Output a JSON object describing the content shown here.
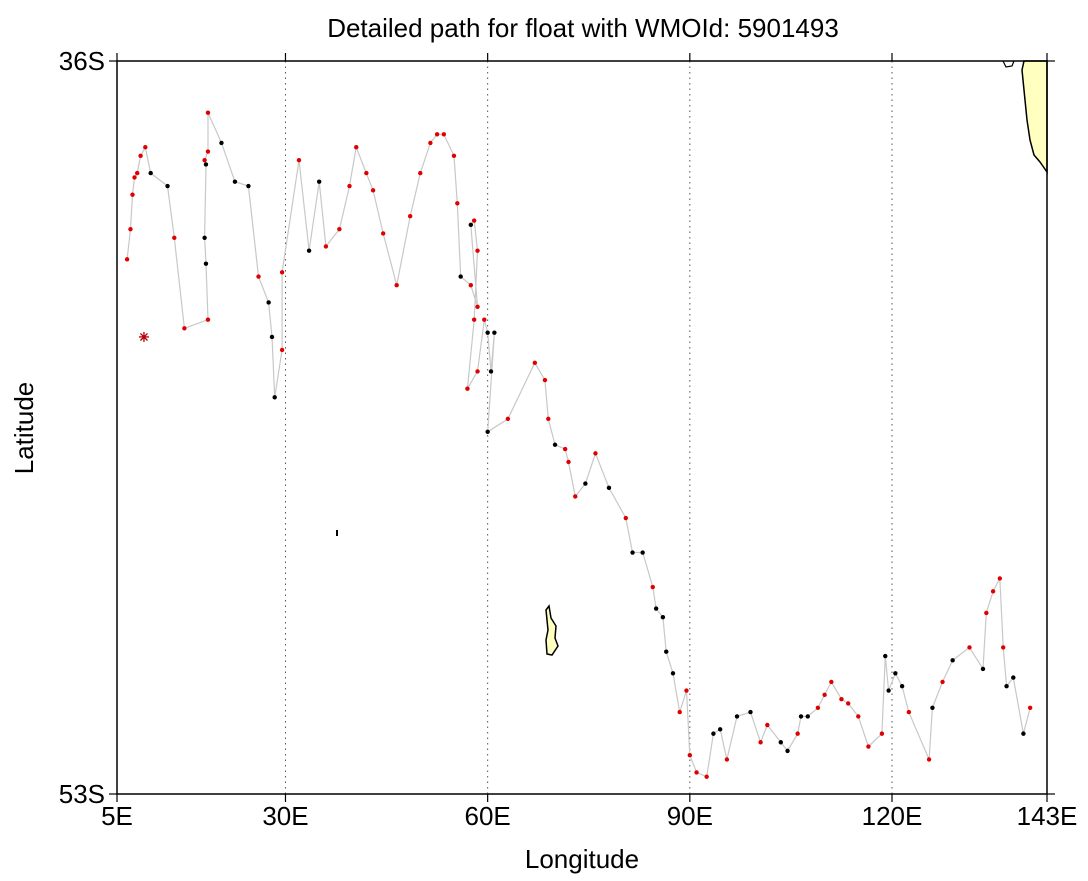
{
  "chart_data": {
    "type": "scatter",
    "title": "Detailed path for float with WMOId: 5901493",
    "xlabel": "Longitude",
    "ylabel": "Latitude",
    "xlim": [
      5,
      143
    ],
    "ylim": [
      -53,
      -36
    ],
    "x_ticks": [
      {
        "value": 5,
        "label": "5E"
      },
      {
        "value": 30,
        "label": "30E"
      },
      {
        "value": 60,
        "label": "60E"
      },
      {
        "value": 90,
        "label": "90E"
      },
      {
        "value": 120,
        "label": "120E"
      },
      {
        "value": 143,
        "label": "143E"
      }
    ],
    "y_ticks": [
      {
        "value": -36,
        "label": "36S"
      },
      {
        "value": -53,
        "label": "53S"
      }
    ],
    "vertical_grid": [
      30,
      60,
      90,
      120
    ],
    "grid": "vertical dotted",
    "colors": {
      "track": "#c8c8c8",
      "point_red": "#e00000",
      "point_black": "#000000",
      "land": "#ffffc0",
      "coast": "#000000"
    },
    "start_marker": {
      "lon": 9.0,
      "lat": -42.4
    },
    "track": [
      [
        6.5,
        -40.6,
        "r"
      ],
      [
        7.0,
        -39.9,
        "r"
      ],
      [
        7.3,
        -39.1,
        "r"
      ],
      [
        7.6,
        -38.7,
        "r"
      ],
      [
        8.0,
        -38.6,
        "r"
      ],
      [
        8.5,
        -38.2,
        "r"
      ],
      [
        9.2,
        -38.0,
        "r"
      ],
      [
        10.0,
        -38.6,
        "b"
      ],
      [
        12.5,
        -38.9,
        "b"
      ],
      [
        13.5,
        -40.1,
        "r"
      ],
      [
        15.0,
        -42.2,
        "r"
      ],
      [
        18.5,
        -42.0,
        "r"
      ],
      [
        18.2,
        -40.7,
        "b"
      ],
      [
        18.0,
        -40.1,
        "b"
      ],
      [
        18.2,
        -38.4,
        "b"
      ],
      [
        18.0,
        -38.3,
        "r"
      ],
      [
        18.5,
        -38.1,
        "r"
      ],
      [
        18.5,
        -37.2,
        "r"
      ],
      [
        20.5,
        -37.9,
        "b"
      ],
      [
        22.5,
        -38.8,
        "b"
      ],
      [
        24.5,
        -38.9,
        "b"
      ],
      [
        26.0,
        -41.0,
        "r"
      ],
      [
        27.5,
        -41.6,
        "b"
      ],
      [
        28.0,
        -42.4,
        "b"
      ],
      [
        28.4,
        -43.8,
        "b"
      ],
      [
        29.5,
        -42.7,
        "r"
      ],
      [
        29.5,
        -40.9,
        "r"
      ],
      [
        32.0,
        -38.3,
        "r"
      ],
      [
        33.5,
        -40.4,
        "b"
      ],
      [
        35.0,
        -38.8,
        "b"
      ],
      [
        36.0,
        -40.3,
        "r"
      ],
      [
        38.0,
        -39.9,
        "r"
      ],
      [
        39.5,
        -38.9,
        "r"
      ],
      [
        40.5,
        -38.0,
        "r"
      ],
      [
        42.0,
        -38.6,
        "r"
      ],
      [
        43.0,
        -39.0,
        "r"
      ],
      [
        44.5,
        -40.0,
        "r"
      ],
      [
        46.5,
        -41.2,
        "r"
      ],
      [
        48.5,
        -39.6,
        "r"
      ],
      [
        50.0,
        -38.6,
        "r"
      ],
      [
        51.5,
        -37.9,
        "r"
      ],
      [
        52.5,
        -37.7,
        "r"
      ],
      [
        53.5,
        -37.7,
        "r"
      ],
      [
        55.0,
        -38.2,
        "r"
      ],
      [
        55.5,
        -39.3,
        "r"
      ],
      [
        56.0,
        -41.0,
        "b"
      ],
      [
        57.5,
        -41.2,
        "r"
      ],
      [
        58.5,
        -41.7,
        "r"
      ],
      [
        57.5,
        -39.8,
        "b"
      ],
      [
        58.0,
        -39.7,
        "r"
      ],
      [
        58.5,
        -40.4,
        "r"
      ],
      [
        58.0,
        -42.0,
        "r"
      ],
      [
        57.0,
        -43.6,
        "r"
      ],
      [
        58.5,
        -43.2,
        "r"
      ],
      [
        59.5,
        -42.0,
        "r"
      ],
      [
        60.0,
        -42.3,
        "b"
      ],
      [
        60.5,
        -43.2,
        "b"
      ],
      [
        61.0,
        -42.3,
        "b"
      ],
      [
        60.0,
        -44.6,
        "b"
      ],
      [
        63.0,
        -44.3,
        "r"
      ],
      [
        67.0,
        -43.0,
        "r"
      ],
      [
        68.5,
        -43.4,
        "r"
      ],
      [
        69.0,
        -44.3,
        "r"
      ],
      [
        70.0,
        -44.9,
        "b"
      ],
      [
        71.5,
        -45.0,
        "r"
      ],
      [
        72.0,
        -45.3,
        "r"
      ],
      [
        73.0,
        -46.1,
        "r"
      ],
      [
        74.5,
        -45.8,
        "b"
      ],
      [
        76.0,
        -45.1,
        "r"
      ],
      [
        78.0,
        -45.9,
        "b"
      ],
      [
        80.5,
        -46.6,
        "r"
      ],
      [
        81.5,
        -47.4,
        "b"
      ],
      [
        83.0,
        -47.4,
        "b"
      ],
      [
        84.5,
        -48.2,
        "r"
      ],
      [
        85.0,
        -48.7,
        "b"
      ],
      [
        86.0,
        -48.9,
        "b"
      ],
      [
        86.5,
        -49.7,
        "b"
      ],
      [
        87.5,
        -50.2,
        "b"
      ],
      [
        88.5,
        -51.1,
        "r"
      ],
      [
        89.5,
        -50.6,
        "r"
      ],
      [
        90.0,
        -52.1,
        "r"
      ],
      [
        91.0,
        -52.5,
        "r"
      ],
      [
        92.5,
        -52.6,
        "r"
      ],
      [
        93.5,
        -51.6,
        "b"
      ],
      [
        94.5,
        -51.5,
        "b"
      ],
      [
        95.5,
        -52.2,
        "r"
      ],
      [
        97.0,
        -51.2,
        "b"
      ],
      [
        99.0,
        -51.1,
        "b"
      ],
      [
        100.5,
        -51.8,
        "r"
      ],
      [
        101.5,
        -51.4,
        "r"
      ],
      [
        103.5,
        -51.8,
        "b"
      ],
      [
        104.5,
        -52.0,
        "b"
      ],
      [
        106.0,
        -51.6,
        "r"
      ],
      [
        106.5,
        -51.2,
        "b"
      ],
      [
        107.5,
        -51.2,
        "b"
      ],
      [
        109.0,
        -51.0,
        "r"
      ],
      [
        110.0,
        -50.7,
        "r"
      ],
      [
        111.0,
        -50.4,
        "r"
      ],
      [
        112.5,
        -50.8,
        "r"
      ],
      [
        113.5,
        -50.9,
        "r"
      ],
      [
        115.0,
        -51.2,
        "r"
      ],
      [
        116.5,
        -51.9,
        "r"
      ],
      [
        118.5,
        -51.6,
        "r"
      ],
      [
        119.0,
        -49.8,
        "b"
      ],
      [
        119.5,
        -50.6,
        "b"
      ],
      [
        120.5,
        -50.2,
        "b"
      ],
      [
        121.5,
        -50.5,
        "b"
      ],
      [
        122.5,
        -51.1,
        "r"
      ],
      [
        125.5,
        -52.2,
        "r"
      ],
      [
        126.0,
        -51.0,
        "b"
      ],
      [
        127.5,
        -50.4,
        "r"
      ],
      [
        129.0,
        -49.9,
        "b"
      ],
      [
        131.5,
        -49.6,
        "r"
      ],
      [
        133.5,
        -50.1,
        "b"
      ],
      [
        134.0,
        -48.8,
        "r"
      ],
      [
        135.0,
        -48.3,
        "r"
      ],
      [
        136.0,
        -48.0,
        "r"
      ],
      [
        136.5,
        -49.6,
        "r"
      ],
      [
        137.0,
        -50.5,
        "b"
      ],
      [
        138.0,
        -50.3,
        "b"
      ],
      [
        139.5,
        -51.6,
        "b"
      ],
      [
        140.5,
        -51.0,
        "r"
      ]
    ]
  }
}
